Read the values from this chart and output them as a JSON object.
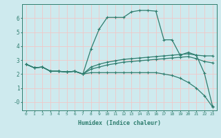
{
  "xlabel": "Humidex (Indice chaleur)",
  "background_color": "#ceeaee",
  "grid_color": "#f0c8c8",
  "line_color": "#2e7d6e",
  "xlim": [
    -0.5,
    23.5
  ],
  "ylim": [
    -0.6,
    7.0
  ],
  "xtick_labels": [
    "0",
    "1",
    "2",
    "3",
    "4",
    "5",
    "6",
    "7",
    "8",
    "9",
    "10",
    "11",
    "12",
    "13",
    "14",
    "15",
    "16",
    "17",
    "18",
    "19",
    "20",
    "21",
    "22",
    "23"
  ],
  "ytick_labels": [
    "-0",
    "1",
    "2",
    "3",
    "4",
    "5",
    "6"
  ],
  "ytick_vals": [
    0,
    1,
    2,
    3,
    4,
    5,
    6
  ],
  "curve1_x": [
    0,
    1,
    2,
    3,
    4,
    5,
    6,
    7,
    8,
    9,
    10,
    11,
    12,
    13,
    14,
    15,
    16,
    17,
    18,
    19,
    20,
    21,
    22,
    23
  ],
  "curve1_y": [
    2.7,
    2.45,
    2.5,
    2.2,
    2.2,
    2.15,
    2.2,
    2.0,
    3.8,
    5.2,
    6.05,
    6.05,
    6.05,
    6.45,
    6.55,
    6.55,
    6.5,
    4.45,
    4.45,
    3.35,
    3.55,
    3.35,
    2.05,
    -0.3
  ],
  "curve2_x": [
    0,
    1,
    2,
    3,
    4,
    5,
    6,
    7,
    8,
    9,
    10,
    11,
    12,
    13,
    14,
    15,
    16,
    17,
    18,
    19,
    20,
    21,
    22,
    23
  ],
  "curve2_y": [
    2.7,
    2.45,
    2.5,
    2.2,
    2.2,
    2.15,
    2.2,
    2.0,
    2.5,
    2.7,
    2.85,
    2.95,
    3.05,
    3.1,
    3.15,
    3.2,
    3.25,
    3.3,
    3.35,
    3.4,
    3.45,
    3.35,
    3.3,
    3.3
  ],
  "curve3_x": [
    0,
    1,
    2,
    3,
    4,
    5,
    6,
    7,
    8,
    9,
    10,
    11,
    12,
    13,
    14,
    15,
    16,
    17,
    18,
    19,
    20,
    21,
    22,
    23
  ],
  "curve3_y": [
    2.7,
    2.45,
    2.5,
    2.2,
    2.2,
    2.15,
    2.2,
    2.0,
    2.35,
    2.5,
    2.65,
    2.75,
    2.85,
    2.9,
    2.95,
    3.0,
    3.05,
    3.1,
    3.15,
    3.2,
    3.25,
    3.1,
    2.9,
    2.8
  ],
  "curve4_x": [
    0,
    1,
    2,
    3,
    4,
    5,
    6,
    7,
    8,
    9,
    10,
    11,
    12,
    13,
    14,
    15,
    16,
    17,
    18,
    19,
    20,
    21,
    22,
    23
  ],
  "curve4_y": [
    2.7,
    2.45,
    2.5,
    2.2,
    2.2,
    2.15,
    2.2,
    2.0,
    2.1,
    2.1,
    2.1,
    2.1,
    2.1,
    2.1,
    2.1,
    2.1,
    2.1,
    2.0,
    1.9,
    1.7,
    1.4,
    1.0,
    0.45,
    -0.35
  ]
}
